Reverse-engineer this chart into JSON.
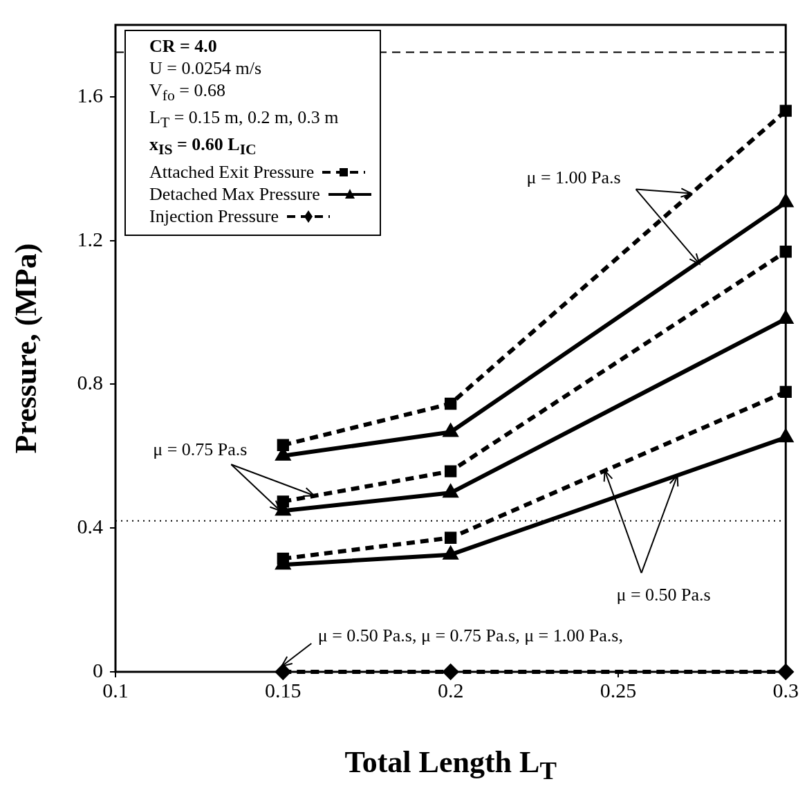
{
  "chart_data": {
    "type": "line",
    "xlabel": "Total Length L$_{T}$",
    "ylabel": "Pressure, (MPa)",
    "x": [
      0.15,
      0.2,
      0.3
    ],
    "series": [
      {
        "name": "Attached Exit Pressure",
        "color": "#000000",
        "values": [
          0.631,
          0.746,
          1.561
        ],
        "marker": "square",
        "line_style": "dashed"
      },
      {
        "name": "Detached Max Pressure",
        "color": "#000000",
        "values": [
          0.601,
          0.667,
          1.306
        ],
        "marker": "triangle",
        "line_style": "solid"
      },
      {
        "color": "#000000",
        "values": [
          0.474,
          0.558,
          1.169
        ],
        "marker": "square",
        "line_style": "dashed"
      },
      {
        "color": "#000000",
        "values": [
          0.448,
          0.498,
          0.982
        ],
        "marker": "triangle",
        "line_style": "solid"
      },
      {
        "color": "#000000",
        "values": [
          0.315,
          0.373,
          0.779
        ],
        "marker": "square",
        "line_style": "dashed"
      },
      {
        "color": "#000000",
        "values": [
          0.298,
          0.326,
          0.652
        ],
        "marker": "triangle",
        "line_style": "solid"
      },
      {
        "name": "Injection Pressure",
        "color": "#000000",
        "values": [
          0,
          0,
          0
        ],
        "marker": "diamond",
        "line_style": "dashed"
      }
    ],
    "xlim": [
      0.1,
      0.3
    ],
    "xticks": [
      0.1,
      0.15,
      0.2,
      0.25,
      0.3
    ],
    "ylim": [
      0,
      1.8
    ],
    "yticks": [
      0,
      0.4,
      0.8,
      1.2,
      1.6
    ],
    "ref_lines": [
      {
        "axis": "y",
        "value": 1.724,
        "line_style": "dashed"
      },
      {
        "axis": "y",
        "value": 0.42,
        "line_style": "dotted"
      }
    ],
    "annotations": [
      "CR = 4.0",
      "U = 0.0254 m/s",
      "V$_{fo}$ = 0.68",
      "L$_{T}$ = 0.15 m, 0.2 m, 0.3 m",
      "x$_{IS}$ = 0.60 L$_{IC}$",
      {
        "text": "μ = 1.00 Pa.s",
        "x": 0.2718,
        "y": 1.331
      },
      {
        "text": "μ = 0.75 Pa.s",
        "x": 0.15,
        "y": 0.448
      },
      {
        "text": "μ = 0.50 Pa.s",
        "x": 0.246,
        "y": 0.56
      },
      {
        "text": "μ = 0.50 Pa.s, μ = 0.75 Pa.s, μ = 1.00 Pa.s,",
        "x": 0.15,
        "y": 0
      }
    ],
    "grid": false,
    "legend": "top left"
  }
}
